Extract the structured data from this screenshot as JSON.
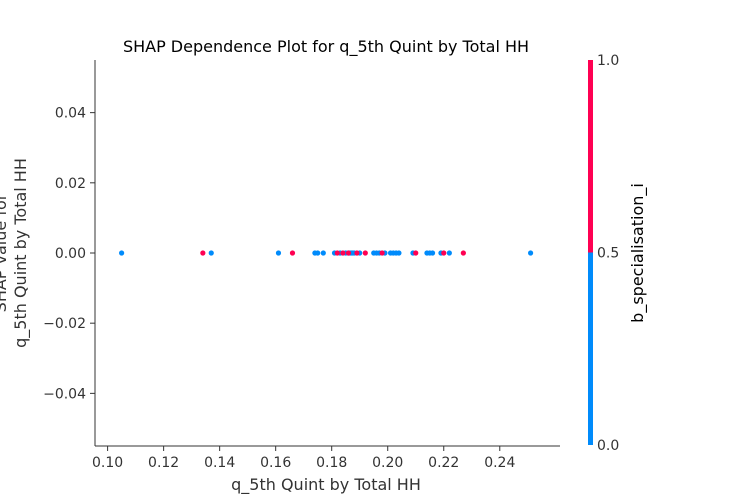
{
  "chart_data": {
    "type": "scatter",
    "title": "SHAP Dependence Plot for q_5th Quint by Total HH",
    "xlabel": "q_5th Quint by Total HH",
    "ylabel_lines": [
      "SHAP value for",
      "q_5th Quint by Total HH"
    ],
    "xlim": [
      0.0955,
      0.2615
    ],
    "ylim": [
      -0.055,
      0.055
    ],
    "x_ticks": [
      0.1,
      0.12,
      0.14,
      0.16,
      0.18,
      0.2,
      0.22,
      0.24
    ],
    "x_tick_labels": [
      "0.10",
      "0.12",
      "0.14",
      "0.16",
      "0.18",
      "0.20",
      "0.22",
      "0.24"
    ],
    "y_ticks": [
      0.04,
      0.02,
      0.0,
      -0.02,
      -0.04
    ],
    "y_tick_labels": [
      "0.04",
      "0.02",
      "0.00",
      "−0.02",
      "−0.04"
    ],
    "grid": false,
    "colorbar": {
      "label": "b_specialisation_i",
      "ticks": [
        1.0,
        0.5,
        0.0
      ],
      "tick_labels": [
        "1.0",
        "0.5",
        "0.0"
      ],
      "color_high": "#ff0052",
      "color_low": "#008bfb"
    },
    "series": [
      {
        "color": "#008bfb",
        "points": [
          {
            "x": 0.105,
            "y": 0.0
          },
          {
            "x": 0.137,
            "y": 0.0
          },
          {
            "x": 0.161,
            "y": 0.0
          },
          {
            "x": 0.174,
            "y": 0.0
          },
          {
            "x": 0.175,
            "y": 0.0
          },
          {
            "x": 0.177,
            "y": 0.0
          },
          {
            "x": 0.181,
            "y": 0.0
          },
          {
            "x": 0.183,
            "y": 0.0
          },
          {
            "x": 0.185,
            "y": 0.0
          },
          {
            "x": 0.186,
            "y": 0.0
          },
          {
            "x": 0.1865,
            "y": 0.0
          },
          {
            "x": 0.187,
            "y": 0.0
          },
          {
            "x": 0.1875,
            "y": 0.0
          },
          {
            "x": 0.188,
            "y": 0.0
          },
          {
            "x": 0.19,
            "y": 0.0
          },
          {
            "x": 0.195,
            "y": 0.0
          },
          {
            "x": 0.196,
            "y": 0.0
          },
          {
            "x": 0.197,
            "y": 0.0
          },
          {
            "x": 0.199,
            "y": 0.0
          },
          {
            "x": 0.201,
            "y": 0.0
          },
          {
            "x": 0.202,
            "y": 0.0
          },
          {
            "x": 0.203,
            "y": 0.0
          },
          {
            "x": 0.204,
            "y": 0.0
          },
          {
            "x": 0.209,
            "y": 0.0
          },
          {
            "x": 0.214,
            "y": 0.0
          },
          {
            "x": 0.215,
            "y": 0.0
          },
          {
            "x": 0.216,
            "y": 0.0
          },
          {
            "x": 0.219,
            "y": 0.0
          },
          {
            "x": 0.222,
            "y": 0.0
          },
          {
            "x": 0.251,
            "y": 0.0
          }
        ]
      },
      {
        "color": "#ff0052",
        "points": [
          {
            "x": 0.134,
            "y": 0.0
          },
          {
            "x": 0.166,
            "y": 0.0
          },
          {
            "x": 0.182,
            "y": 0.0
          },
          {
            "x": 0.184,
            "y": 0.0
          },
          {
            "x": 0.186,
            "y": 0.0
          },
          {
            "x": 0.189,
            "y": 0.0
          },
          {
            "x": 0.192,
            "y": 0.0
          },
          {
            "x": 0.198,
            "y": 0.0
          },
          {
            "x": 0.21,
            "y": 0.0
          },
          {
            "x": 0.22,
            "y": 0.0
          },
          {
            "x": 0.227,
            "y": 0.0
          }
        ]
      }
    ]
  }
}
